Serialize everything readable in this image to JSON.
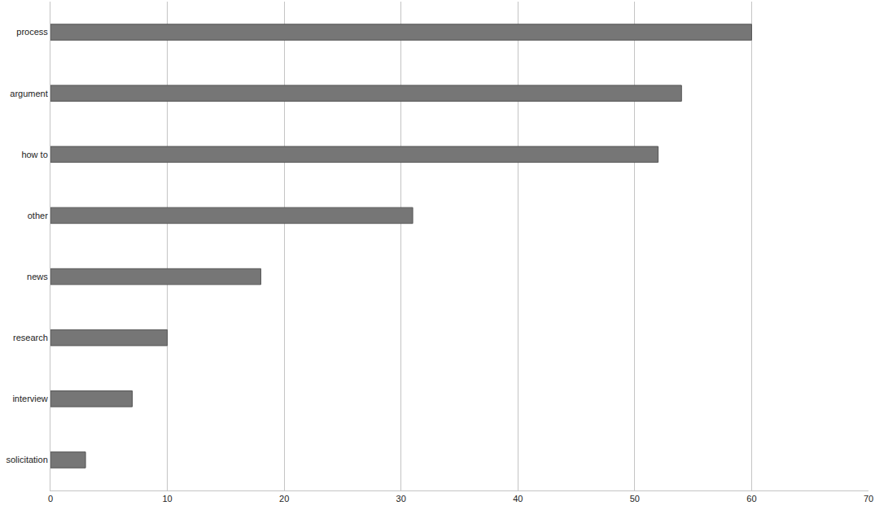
{
  "chart_data": {
    "type": "bar",
    "orientation": "horizontal",
    "categories": [
      "process",
      "argument",
      "how to",
      "other",
      "news",
      "research",
      "interview",
      "solicitation"
    ],
    "values": [
      60,
      54,
      52,
      31,
      18,
      10,
      7,
      3
    ],
    "color": "#767676",
    "xlim": [
      0,
      70
    ],
    "xticks": [
      0,
      10,
      20,
      30,
      40,
      50,
      60,
      70
    ],
    "grid": true
  }
}
